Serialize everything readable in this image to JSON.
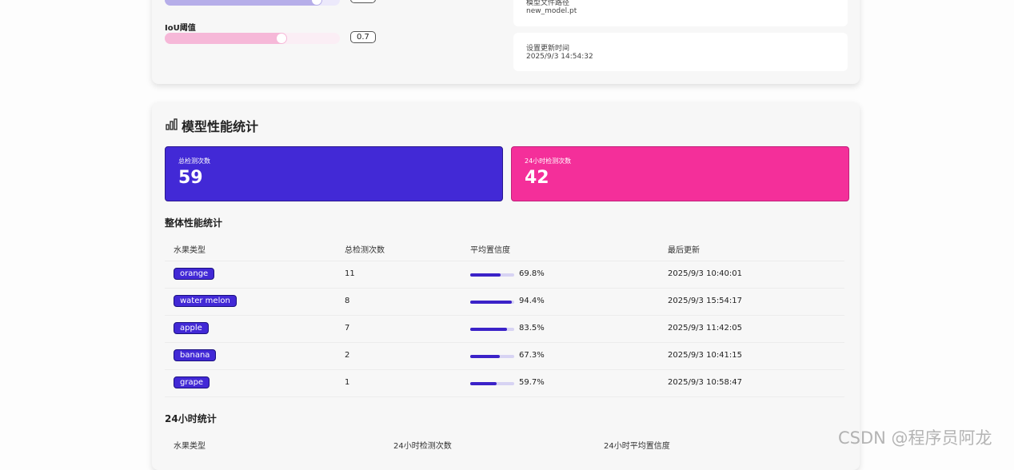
{
  "thresholds": [
    {
      "value": 0.9
    },
    {
      "label": "IoU阈值",
      "value": 0.7
    }
  ],
  "model_info": {
    "path_label": "模型文件路径",
    "path": "new_model.pt",
    "time_label": "设置更新时间",
    "time": "2025/9/3 14:54:32"
  },
  "stats": {
    "title": "模型性能统计",
    "total": {
      "label": "总检测次数",
      "value": 59
    },
    "day": {
      "label": "24小时检测次数",
      "value": 42
    }
  },
  "overall": {
    "title": "整体性能统计",
    "columns": [
      "水果类型",
      "总检测次数",
      "平均置信度",
      "最后更新"
    ],
    "rows": [
      {
        "fruit": "orange",
        "count": 11,
        "confidence": {
          "value": 69.8,
          "label": "69.8%"
        },
        "updated": "2025/9/3 10:40:01"
      },
      {
        "fruit": "water melon",
        "count": 8,
        "confidence": {
          "value": 94.4,
          "label": "94.4%"
        },
        "updated": "2025/9/3 15:54:17"
      },
      {
        "fruit": "apple",
        "count": 7,
        "confidence": {
          "value": 83.5,
          "label": "83.5%"
        },
        "updated": "2025/9/3 11:42:05"
      },
      {
        "fruit": "banana",
        "count": 2,
        "confidence": {
          "value": 67.3,
          "label": "67.3%"
        },
        "updated": "2025/9/3 10:41:15"
      },
      {
        "fruit": "grape",
        "count": 1,
        "confidence": {
          "value": 59.7,
          "label": "59.7%"
        },
        "updated": "2025/9/3 10:58:47"
      }
    ]
  },
  "daily": {
    "title": "24小时统计",
    "columns": [
      "水果类型",
      "24小时检测次数",
      "24小时平均置信度"
    ]
  },
  "watermark": "CSDN @程序员阿龙"
}
